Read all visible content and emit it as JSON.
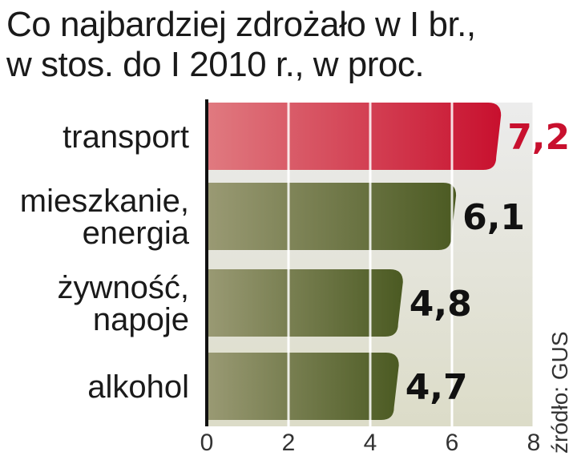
{
  "chart_data": {
    "type": "bar",
    "orientation": "horizontal",
    "title_lines": [
      "Co najbardziej zdrożało w I br.,",
      "w stos. do I 2010 r., w proc."
    ],
    "categories": [
      [
        "transport"
      ],
      [
        "mieszkanie,",
        "energia"
      ],
      [
        "żywność,",
        "napoje"
      ],
      [
        "alkohol"
      ]
    ],
    "values": [
      7.2,
      6.1,
      4.8,
      4.7
    ],
    "value_labels": [
      "7,2",
      "6,1",
      "4,8",
      "4,7"
    ],
    "highlight_index": 0,
    "xlim": [
      0,
      8
    ],
    "xticks": [
      0,
      2,
      4,
      6,
      8
    ],
    "xtick_labels": [
      "0",
      "2",
      "4",
      "6",
      "8"
    ],
    "grid": true,
    "source": "źródło: GUS",
    "colors": {
      "highlight_start": "#e07a80",
      "highlight_end": "#c8102e",
      "highlight_text": "#c8102e",
      "bar_start": "#9a9a74",
      "bar_end": "#4b5a22",
      "value_text": "#111111",
      "band_light": "#dcdcc8",
      "band_top": "#ececec",
      "axis": "#111111",
      "grid": "#ffffff"
    }
  }
}
